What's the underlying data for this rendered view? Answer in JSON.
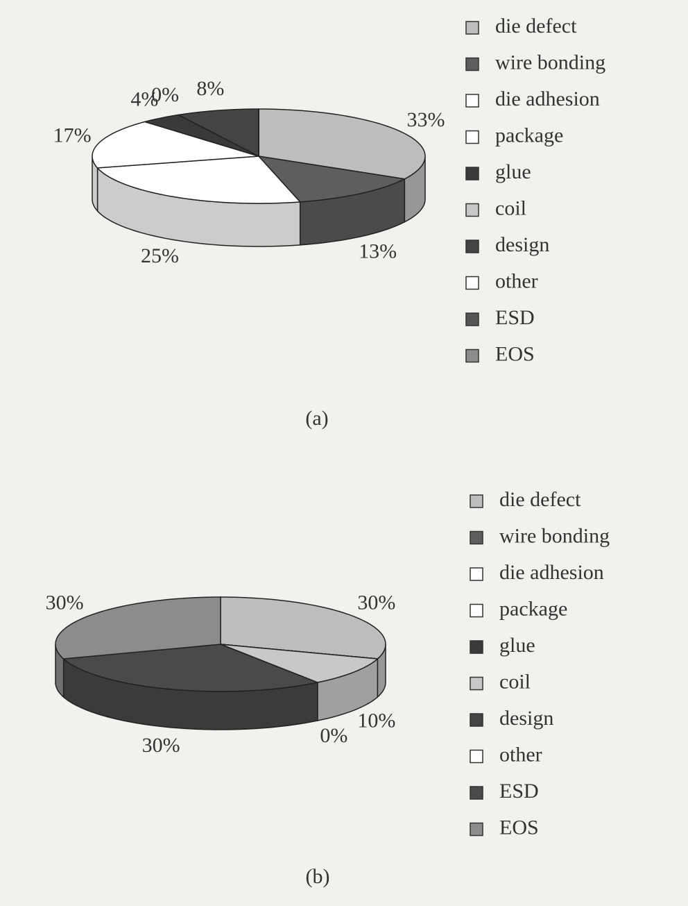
{
  "chart_data": [
    {
      "type": "pie",
      "caption": "(a)",
      "categories": [
        "die defect",
        "wire bonding",
        "die adhesion",
        "package",
        "glue",
        "coil",
        "design",
        "other",
        "ESD",
        "EOS"
      ],
      "values": [
        33,
        13,
        25,
        17,
        4,
        0,
        8,
        0,
        0,
        0
      ],
      "value_labels": [
        "33%",
        "13%",
        "25%",
        "17%",
        "4%",
        "0%",
        "8%",
        null,
        null,
        null
      ],
      "colors": [
        "#bdbdbd",
        "#5e5e5e",
        "#ffffff",
        "#ffffff",
        "#3a3a3a",
        "#c8c8c8",
        "#444444",
        "#ffffff",
        "#555555",
        "#8c8c8c"
      ]
    },
    {
      "type": "pie",
      "caption": "(b)",
      "categories": [
        "die defect",
        "wire bonding",
        "die adhesion",
        "package",
        "glue",
        "coil",
        "design",
        "other",
        "ESD",
        "EOS"
      ],
      "values": [
        30,
        0,
        0,
        0,
        0,
        10,
        0,
        0,
        30,
        30
      ],
      "value_labels": [
        "30%",
        null,
        null,
        null,
        null,
        "10%",
        "0%",
        null,
        "30%",
        "30%"
      ],
      "colors": [
        "#bdbdbd",
        "#5e5e5e",
        "#ffffff",
        "#ffffff",
        "#3a3a3a",
        "#c8c8c8",
        "#444444",
        "#ffffff",
        "#4a4a4a",
        "#8c8c8c"
      ]
    }
  ]
}
